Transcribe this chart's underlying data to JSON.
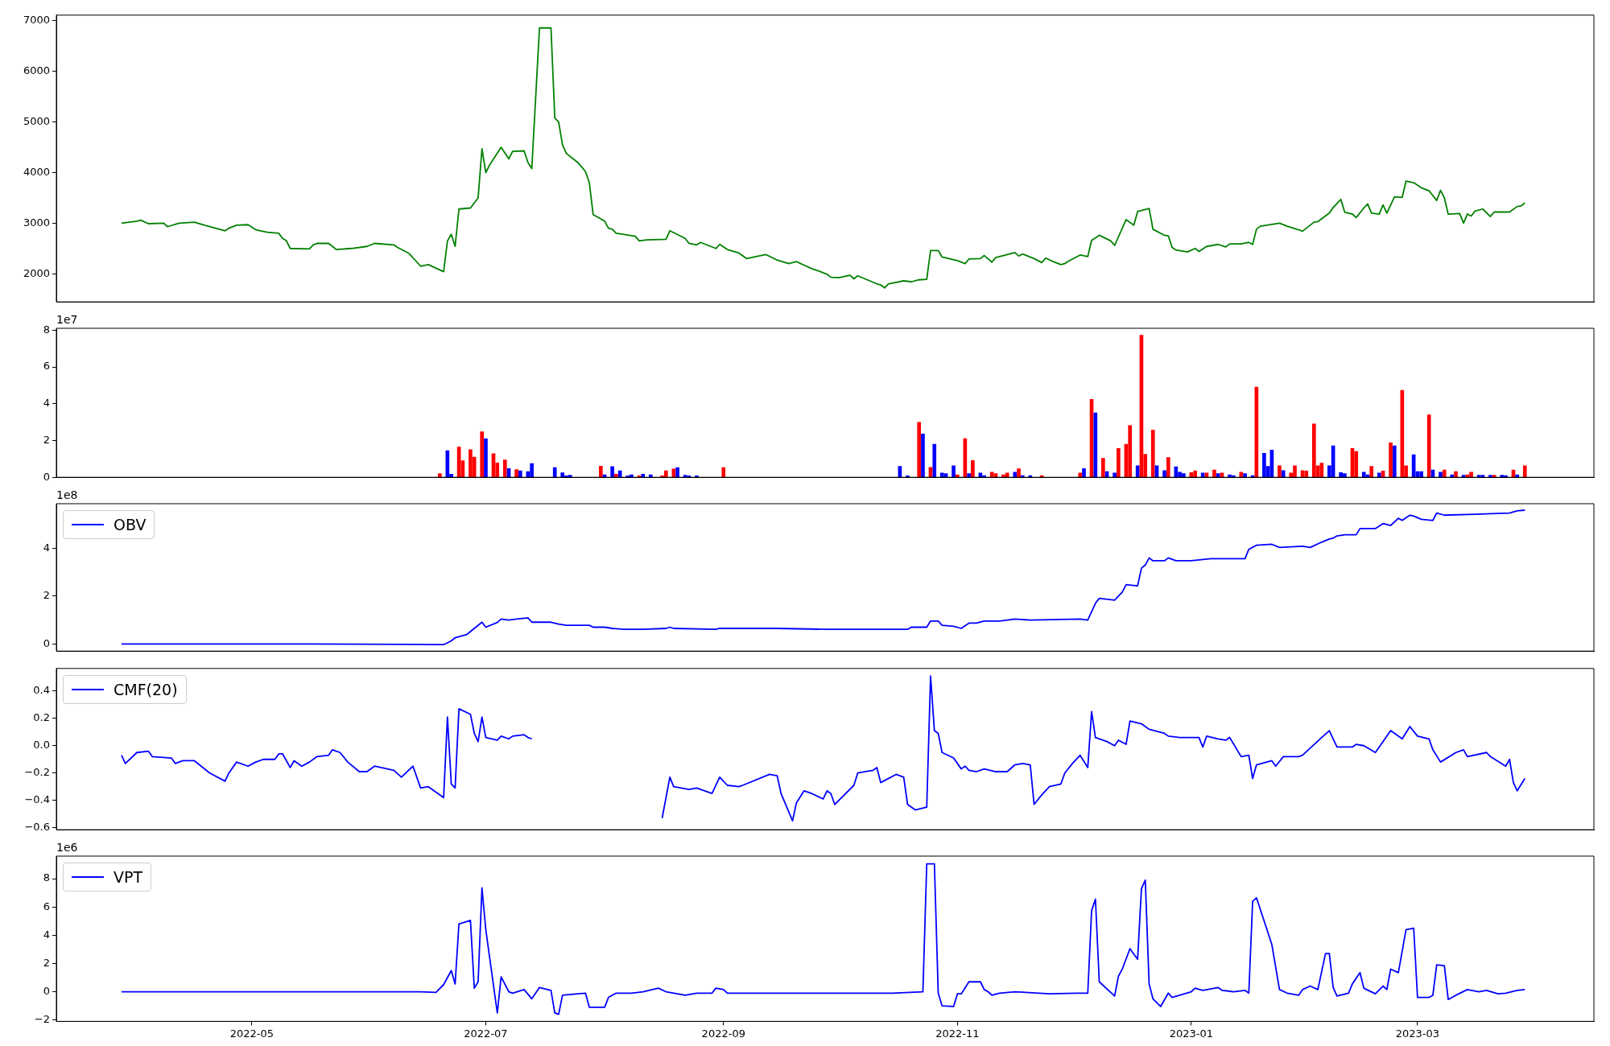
{
  "chart_data": [
    {
      "type": "line",
      "color": "#008000",
      "marker": "none",
      "grid": false,
      "tick_labels": "y",
      "xlim": [
        "2022-03-11",
        "2023-04-16"
      ],
      "xticks": [
        "2022-05",
        "2022-07",
        "2022-09",
        "2022-11",
        "2023-01",
        "2023-03"
      ],
      "ylim": [
        1443,
        7114
      ],
      "yticks": [
        2000,
        3000,
        4000,
        5000,
        6000,
        7000
      ],
      "x": [
        "2022-03-28",
        "2022-04-01",
        "2022-04-02",
        "2022-04-04",
        "2022-04-08",
        "2022-04-09",
        "2022-04-12",
        "2022-04-16",
        "2022-04-19",
        "2022-04-24",
        "2022-04-25",
        "2022-04-27",
        "2022-04-30",
        "2022-05-02",
        "2022-05-05",
        "2022-05-08",
        "2022-05-09",
        "2022-05-10",
        "2022-05-11",
        "2022-05-16",
        "2022-05-17",
        "2022-05-18",
        "2022-05-21",
        "2022-05-23",
        "2022-05-27",
        "2022-05-31",
        "2022-06-02",
        "2022-06-07",
        "2022-06-08",
        "2022-06-11",
        "2022-06-14",
        "2022-06-16",
        "2022-06-20",
        "2022-06-21",
        "2022-06-22",
        "2022-06-23",
        "2022-06-24",
        "2022-06-27",
        "2022-06-29",
        "2022-06-30",
        "2022-07-01",
        "2022-07-02",
        "2022-07-05",
        "2022-07-07",
        "2022-07-08",
        "2022-07-11",
        "2022-07-12",
        "2022-07-13",
        "2022-07-15",
        "2022-07-18",
        "2022-07-19",
        "2022-07-20",
        "2022-07-21",
        "2022-07-22",
        "2022-07-25",
        "2022-07-27",
        "2022-07-28",
        "2022-07-29",
        "2022-08-01",
        "2022-08-02",
        "2022-08-03",
        "2022-08-04",
        "2022-08-09",
        "2022-08-10",
        "2022-08-12",
        "2022-08-17",
        "2022-08-18",
        "2022-08-22",
        "2022-08-23",
        "2022-08-25",
        "2022-08-26",
        "2022-08-30",
        "2022-08-31",
        "2022-09-02",
        "2022-09-05",
        "2022-09-07",
        "2022-09-12",
        "2022-09-15",
        "2022-09-18",
        "2022-09-20",
        "2022-09-22",
        "2022-09-24",
        "2022-09-26",
        "2022-09-28",
        "2022-09-29",
        "2022-10-01",
        "2022-10-04",
        "2022-10-05",
        "2022-10-06",
        "2022-10-11",
        "2022-10-12",
        "2022-10-13",
        "2022-10-14",
        "2022-10-18",
        "2022-10-20",
        "2022-10-22",
        "2022-10-24",
        "2022-10-25",
        "2022-10-27",
        "2022-10-28",
        "2022-11-01",
        "2022-11-03",
        "2022-11-04",
        "2022-11-07",
        "2022-11-08",
        "2022-11-10",
        "2022-11-11",
        "2022-11-14",
        "2022-11-16",
        "2022-11-17",
        "2022-11-18",
        "2022-11-21",
        "2022-11-23",
        "2022-11-24",
        "2022-11-26",
        "2022-11-28",
        "2022-11-29",
        "2022-11-30",
        "2022-12-03",
        "2022-12-05",
        "2022-12-06",
        "2022-12-08",
        "2022-12-11",
        "2022-12-12",
        "2022-12-15",
        "2022-12-17",
        "2022-12-18",
        "2022-12-21",
        "2022-12-22",
        "2022-12-25",
        "2022-12-26",
        "2022-12-27",
        "2022-12-28",
        "2022-12-31",
        "2023-01-02",
        "2023-01-03",
        "2023-01-05",
        "2023-01-08",
        "2023-01-10",
        "2023-01-11",
        "2023-01-14",
        "2023-01-16",
        "2023-01-17",
        "2023-01-18",
        "2023-01-19",
        "2023-01-24",
        "2023-01-26",
        "2023-01-29",
        "2023-01-30",
        "2023-02-02",
        "2023-02-03",
        "2023-02-06",
        "2023-02-07",
        "2023-02-09",
        "2023-02-10",
        "2023-02-12",
        "2023-02-13",
        "2023-02-15",
        "2023-02-16",
        "2023-02-17",
        "2023-02-19",
        "2023-02-20",
        "2023-02-21",
        "2023-02-23",
        "2023-02-25",
        "2023-02-26",
        "2023-02-28",
        "2023-03-02",
        "2023-03-04",
        "2023-03-06",
        "2023-03-07",
        "2023-03-08",
        "2023-03-09",
        "2023-03-12",
        "2023-03-13",
        "2023-03-14",
        "2023-03-15",
        "2023-03-16",
        "2023-03-18",
        "2023-03-20",
        "2023-03-21",
        "2023-03-25",
        "2023-03-27",
        "2023-03-28",
        "2023-03-29"
      ],
      "values": [
        3000,
        3040,
        3060,
        2990,
        3000,
        2930,
        3000,
        3020,
        2950,
        2850,
        2900,
        2960,
        2970,
        2870,
        2820,
        2800,
        2700,
        2650,
        2500,
        2490,
        2570,
        2600,
        2600,
        2480,
        2500,
        2540,
        2600,
        2570,
        2520,
        2400,
        2150,
        2180,
        2040,
        2650,
        2780,
        2540,
        3280,
        3300,
        3500,
        4470,
        4000,
        4150,
        4500,
        4270,
        4420,
        4430,
        4200,
        4080,
        6860,
        6860,
        5080,
        5000,
        4550,
        4380,
        4200,
        4020,
        3800,
        3170,
        3040,
        2900,
        2880,
        2800,
        2740,
        2650,
        2670,
        2680,
        2850,
        2700,
        2600,
        2570,
        2620,
        2500,
        2580,
        2480,
        2410,
        2300,
        2380,
        2270,
        2200,
        2240,
        2170,
        2100,
        2050,
        1990,
        1930,
        1920,
        1970,
        1900,
        1960,
        1800,
        1780,
        1720,
        1800,
        1860,
        1840,
        1880,
        1890,
        2460,
        2460,
        2330,
        2260,
        2200,
        2290,
        2300,
        2360,
        2230,
        2320,
        2380,
        2420,
        2350,
        2390,
        2300,
        2220,
        2310,
        2240,
        2180,
        2200,
        2250,
        2370,
        2340,
        2660,
        2760,
        2650,
        2560,
        3070,
        2960,
        3230,
        3290,
        2880,
        2760,
        2750,
        2520,
        2470,
        2430,
        2500,
        2440,
        2540,
        2580,
        2530,
        2590,
        2590,
        2620,
        2580,
        2880,
        2940,
        3000,
        2940,
        2870,
        2840,
        3020,
        3030,
        3200,
        3310,
        3470,
        3220,
        3180,
        3110,
        3300,
        3380,
        3200,
        3180,
        3360,
        3200,
        3520,
        3510,
        3830,
        3800,
        3700,
        3640,
        3450,
        3650,
        3500,
        3180,
        3190,
        3000,
        3180,
        3140,
        3240,
        3280,
        3130,
        3220,
        3220,
        3330,
        3340,
        3400
      ]
    },
    {
      "type": "bar",
      "grid": false,
      "tick_labels": "y",
      "xlim": [
        "2022-03-11",
        "2023-04-16"
      ],
      "xticks": [
        "2022-05",
        "2022-07",
        "2022-09",
        "2022-11",
        "2023-01",
        "2023-03"
      ],
      "ylim": [
        0,
        8.1
      ],
      "yticks": [
        0,
        2,
        4,
        6,
        8
      ],
      "annotations": [
        "1e7"
      ],
      "x": [
        "2022-06-19",
        "2022-06-21",
        "2022-06-22",
        "2022-06-24",
        "2022-06-25",
        "2022-06-27",
        "2022-06-28",
        "2022-06-30",
        "2022-07-01",
        "2022-07-03",
        "2022-07-04",
        "2022-07-06",
        "2022-07-07",
        "2022-07-09",
        "2022-07-10",
        "2022-07-12",
        "2022-07-13",
        "2022-07-19",
        "2022-07-21",
        "2022-07-22",
        "2022-07-23",
        "2022-07-31",
        "2022-08-01",
        "2022-08-03",
        "2022-08-04",
        "2022-08-05",
        "2022-08-07",
        "2022-08-08",
        "2022-08-10",
        "2022-08-11",
        "2022-08-13",
        "2022-08-16",
        "2022-08-17",
        "2022-08-19",
        "2022-08-20",
        "2022-08-22",
        "2022-08-23",
        "2022-08-25",
        "2022-09-01",
        "2022-10-17",
        "2022-10-19",
        "2022-10-22",
        "2022-10-23",
        "2022-10-25",
        "2022-10-26",
        "2022-10-28",
        "2022-10-29",
        "2022-10-31",
        "2022-11-01",
        "2022-11-03",
        "2022-11-04",
        "2022-11-05",
        "2022-11-07",
        "2022-11-08",
        "2022-11-10",
        "2022-11-11",
        "2022-11-13",
        "2022-11-14",
        "2022-11-16",
        "2022-11-17",
        "2022-11-18",
        "2022-11-20",
        "2022-11-23",
        "2022-12-03",
        "2022-12-04",
        "2022-12-06",
        "2022-12-07",
        "2022-12-09",
        "2022-12-10",
        "2022-12-12",
        "2022-12-13",
        "2022-12-15",
        "2022-12-16",
        "2022-12-18",
        "2022-12-19",
        "2022-12-20",
        "2022-12-22",
        "2022-12-23",
        "2022-12-25",
        "2022-12-26",
        "2022-12-28",
        "2022-12-29",
        "2022-12-30",
        "2023-01-01",
        "2023-01-02",
        "2023-01-04",
        "2023-01-05",
        "2023-01-07",
        "2023-01-08",
        "2023-01-09",
        "2023-01-11",
        "2023-01-12",
        "2023-01-14",
        "2023-01-15",
        "2023-01-17",
        "2023-01-18",
        "2023-01-20",
        "2023-01-21",
        "2023-01-22",
        "2023-01-24",
        "2023-01-25",
        "2023-01-27",
        "2023-01-28",
        "2023-01-30",
        "2023-01-31",
        "2023-02-02",
        "2023-02-03",
        "2023-02-04",
        "2023-02-06",
        "2023-02-07",
        "2023-02-09",
        "2023-02-10",
        "2023-02-12",
        "2023-02-13",
        "2023-02-15",
        "2023-02-16",
        "2023-02-17",
        "2023-02-19",
        "2023-02-20",
        "2023-02-22",
        "2023-02-23",
        "2023-02-25",
        "2023-02-26",
        "2023-02-28",
        "2023-03-01",
        "2023-03-02",
        "2023-03-04",
        "2023-03-05",
        "2023-03-07",
        "2023-03-08",
        "2023-03-10",
        "2023-03-11",
        "2023-03-13",
        "2023-03-14",
        "2023-03-15",
        "2023-03-17",
        "2023-03-18",
        "2023-03-20",
        "2023-03-21",
        "2023-03-23",
        "2023-03-24",
        "2023-03-26",
        "2023-03-27",
        "2023-03-29"
      ],
      "values": [
        0.2,
        1.45,
        0.17,
        1.64,
        0.9,
        1.5,
        1.1,
        2.48,
        2.09,
        1.28,
        0.78,
        0.95,
        0.47,
        0.42,
        0.36,
        0.31,
        0.75,
        0.53,
        0.25,
        0.08,
        0.11,
        0.61,
        0.14,
        0.58,
        0.17,
        0.36,
        0.08,
        0.14,
        0.08,
        0.17,
        0.14,
        0.08,
        0.36,
        0.45,
        0.53,
        0.11,
        0.08,
        0.08,
        0.53,
        0.6,
        0.08,
        2.99,
        2.36,
        0.54,
        1.8,
        0.23,
        0.2,
        0.63,
        0.14,
        2.1,
        0.2,
        0.91,
        0.23,
        0.09,
        0.28,
        0.2,
        0.14,
        0.23,
        0.28,
        0.46,
        0.09,
        0.09,
        0.09,
        0.23,
        0.48,
        4.24,
        3.5,
        1.03,
        0.31,
        0.23,
        1.57,
        1.8,
        2.82,
        0.63,
        7.72,
        1.25,
        2.56,
        0.63,
        0.37,
        1.08,
        0.57,
        0.28,
        0.2,
        0.26,
        0.34,
        0.23,
        0.23,
        0.4,
        0.2,
        0.23,
        0.14,
        0.09,
        0.28,
        0.2,
        0.09,
        4.9,
        1.31,
        0.6,
        1.48,
        0.63,
        0.37,
        0.23,
        0.63,
        0.37,
        0.34,
        2.9,
        0.63,
        0.77,
        0.63,
        1.71,
        0.26,
        0.2,
        1.57,
        1.4,
        0.28,
        0.14,
        0.6,
        0.23,
        0.34,
        1.88,
        1.71,
        4.73,
        0.63,
        1.23,
        0.31,
        0.31,
        3.39,
        0.4,
        0.28,
        0.4,
        0.14,
        0.31,
        0.11,
        0.14,
        0.28,
        0.11,
        0.11,
        0.11,
        0.11,
        0.11,
        0.09,
        0.4,
        0.14,
        0.63
      ],
      "colors": [
        "#ff0000",
        "#0000ff",
        "#0000ff",
        "#ff0000",
        "#ff0000",
        "#ff0000",
        "#ff0000",
        "#ff0000",
        "#0000ff",
        "#ff0000",
        "#ff0000",
        "#ff0000",
        "#0000ff",
        "#ff0000",
        "#0000ff",
        "#0000ff",
        "#0000ff",
        "#0000ff",
        "#0000ff",
        "#0000ff",
        "#0000ff",
        "#ff0000",
        "#0000ff",
        "#0000ff",
        "#ff0000",
        "#0000ff",
        "#0000ff",
        "#0000ff",
        "#ff0000",
        "#0000ff",
        "#0000ff",
        "#ff0000",
        "#ff0000",
        "#ff0000",
        "#0000ff",
        "#0000ff",
        "#0000ff",
        "#0000ff",
        "#ff0000",
        "#0000ff",
        "#0000ff",
        "#ff0000",
        "#0000ff",
        "#ff0000",
        "#0000ff",
        "#0000ff",
        "#0000ff",
        "#0000ff",
        "#ff0000",
        "#ff0000",
        "#0000ff",
        "#ff0000",
        "#0000ff",
        "#0000ff",
        "#ff0000",
        "#ff0000",
        "#ff0000",
        "#ff0000",
        "#0000ff",
        "#ff0000",
        "#0000ff",
        "#0000ff",
        "#ff0000",
        "#ff0000",
        "#0000ff",
        "#ff0000",
        "#0000ff",
        "#ff0000",
        "#0000ff",
        "#0000ff",
        "#ff0000",
        "#ff0000",
        "#ff0000",
        "#0000ff",
        "#ff0000",
        "#ff0000",
        "#ff0000",
        "#0000ff",
        "#0000ff",
        "#ff0000",
        "#0000ff",
        "#0000ff",
        "#0000ff",
        "#ff0000",
        "#ff0000",
        "#0000ff",
        "#ff0000",
        "#ff0000",
        "#0000ff",
        "#ff0000",
        "#0000ff",
        "#0000ff",
        "#ff0000",
        "#0000ff",
        "#0000ff",
        "#ff0000",
        "#0000ff",
        "#0000ff",
        "#0000ff",
        "#ff0000",
        "#0000ff",
        "#ff0000",
        "#ff0000",
        "#ff0000",
        "#ff0000",
        "#ff0000",
        "#ff0000",
        "#ff0000",
        "#0000ff",
        "#0000ff",
        "#0000ff",
        "#0000ff",
        "#ff0000",
        "#ff0000",
        "#0000ff",
        "#0000ff",
        "#ff0000",
        "#0000ff",
        "#ff0000",
        "#ff0000",
        "#0000ff",
        "#ff0000",
        "#ff0000",
        "#0000ff",
        "#0000ff",
        "#0000ff",
        "#ff0000",
        "#0000ff",
        "#0000ff",
        "#ff0000",
        "#0000ff",
        "#ff0000",
        "#0000ff",
        "#ff0000",
        "#ff0000",
        "#0000ff",
        "#0000ff",
        "#0000ff",
        "#ff0000",
        "#0000ff",
        "#0000ff",
        "#ff0000",
        "#0000ff",
        "#ff0000"
      ]
    },
    {
      "type": "line",
      "marker": "none",
      "grid": false,
      "tick_labels": "y",
      "legend": "top left",
      "xlim": [
        "2022-03-11",
        "2023-04-16"
      ],
      "xticks": [
        "2022-05",
        "2022-07",
        "2022-09",
        "2022-11",
        "2023-01",
        "2023-03"
      ],
      "ylim": [
        -0.3,
        5.87
      ],
      "yticks": [
        0,
        2,
        4
      ],
      "annotations": [
        "1e8"
      ],
      "x": [
        "2022-03-28",
        "2022-05-16",
        "2022-06-20",
        "2022-06-22",
        "2022-06-23",
        "2022-06-26",
        "2022-06-28",
        "2022-06-30",
        "2022-07-01",
        "2022-07-04",
        "2022-07-05",
        "2022-07-07",
        "2022-07-09",
        "2022-07-12",
        "2022-07-13",
        "2022-07-18",
        "2022-07-20",
        "2022-07-22",
        "2022-07-28",
        "2022-07-29",
        "2022-08-01",
        "2022-08-03",
        "2022-08-06",
        "2022-08-09",
        "2022-08-11",
        "2022-08-17",
        "2022-08-18",
        "2022-08-19",
        "2022-08-30",
        "2022-08-31",
        "2022-09-15",
        "2022-09-28",
        "2022-10-09",
        "2022-10-19",
        "2022-10-20",
        "2022-10-24",
        "2022-10-25",
        "2022-10-27",
        "2022-10-28",
        "2022-10-31",
        "2022-11-02",
        "2022-11-04",
        "2022-11-06",
        "2022-11-08",
        "2022-11-12",
        "2022-11-16",
        "2022-11-20",
        "2022-12-03",
        "2022-12-05",
        "2022-12-07",
        "2022-12-08",
        "2022-12-12",
        "2022-12-14",
        "2022-12-15",
        "2022-12-18",
        "2022-12-19",
        "2022-12-20",
        "2022-12-21",
        "2022-12-22",
        "2022-12-25",
        "2022-12-26",
        "2022-12-28",
        "2023-01-01",
        "2023-01-06",
        "2023-01-12",
        "2023-01-15",
        "2023-01-16",
        "2023-01-18",
        "2023-01-22",
        "2023-01-24",
        "2023-01-30",
        "2023-02-01",
        "2023-02-04",
        "2023-02-06",
        "2023-02-07",
        "2023-02-08",
        "2023-02-10",
        "2023-02-13",
        "2023-02-14",
        "2023-02-18",
        "2023-02-20",
        "2023-02-22",
        "2023-02-24",
        "2023-02-25",
        "2023-02-27",
        "2023-02-28",
        "2023-03-02",
        "2023-03-05",
        "2023-03-06",
        "2023-03-08",
        "2023-03-16",
        "2023-03-25",
        "2023-03-27",
        "2023-03-29"
      ],
      "series": [
        {
          "name": "OBV",
          "color": "#0000ff",
          "values": [
            0,
            0,
            -0.03,
            0.13,
            0.26,
            0.39,
            0.65,
            0.91,
            0.7,
            0.9,
            1.04,
            1.0,
            1.04,
            1.09,
            0.91,
            0.91,
            0.83,
            0.78,
            0.78,
            0.7,
            0.7,
            0.65,
            0.61,
            0.61,
            0.61,
            0.65,
            0.7,
            0.65,
            0.61,
            0.65,
            0.65,
            0.61,
            0.61,
            0.61,
            0.7,
            0.7,
            0.96,
            0.96,
            0.78,
            0.74,
            0.65,
            0.87,
            0.87,
            0.96,
            0.96,
            1.04,
            1.0,
            1.04,
            1.0,
            1.7,
            1.91,
            1.83,
            2.17,
            2.48,
            2.43,
            3.17,
            3.3,
            3.6,
            3.48,
            3.48,
            3.6,
            3.48,
            3.48,
            3.57,
            3.57,
            3.57,
            3.96,
            4.13,
            4.17,
            4.04,
            4.09,
            4.04,
            4.26,
            4.39,
            4.43,
            4.52,
            4.57,
            4.57,
            4.83,
            4.83,
            5.04,
            4.96,
            5.26,
            5.17,
            5.39,
            5.35,
            5.22,
            5.17,
            5.48,
            5.39,
            5.43,
            5.48,
            5.57,
            5.6
          ]
        }
      ]
    },
    {
      "type": "line",
      "marker": "none",
      "grid": false,
      "tick_labels": "y",
      "legend": "top left",
      "xlim": [
        "2022-03-11",
        "2023-04-16"
      ],
      "xticks": [
        "2022-05",
        "2022-07",
        "2022-09",
        "2022-11",
        "2023-01",
        "2023-03"
      ],
      "ylim": [
        -0.615,
        0.565
      ],
      "yticks": [
        {
          "value": -0.6,
          "label": "−0.6"
        },
        {
          "value": -0.4,
          "label": "−0.4"
        },
        {
          "value": -0.2,
          "label": "−0.2"
        },
        {
          "value": 0,
          "label": "0.0"
        },
        0.2,
        0.4
      ],
      "x": [
        "2022-03-28",
        "2022-03-29",
        "2022-04-01",
        "2022-04-04",
        "2022-04-05",
        "2022-04-10",
        "2022-04-11",
        "2022-04-13",
        "2022-04-16",
        "2022-04-20",
        "2022-04-24",
        "2022-04-25",
        "2022-04-27",
        "2022-04-30",
        "2022-05-02",
        "2022-05-04",
        "2022-05-07",
        "2022-05-08",
        "2022-05-09",
        "2022-05-11",
        "2022-05-12",
        "2022-05-14",
        "2022-05-16",
        "2022-05-18",
        "2022-05-21",
        "2022-05-22",
        "2022-05-24",
        "2022-05-26",
        "2022-05-29",
        "2022-05-31",
        "2022-06-02",
        "2022-06-07",
        "2022-06-09",
        "2022-06-12",
        "2022-06-14",
        "2022-06-16",
        "2022-06-20",
        "2022-06-21",
        "2022-06-22",
        "2022-06-23",
        "2022-06-24",
        "2022-06-27",
        "2022-06-28",
        "2022-06-29",
        "2022-06-30",
        "2022-07-01",
        "2022-07-04",
        "2022-07-05",
        "2022-07-07",
        "2022-07-08",
        "2022-07-11",
        "2022-07-12",
        "2022-07-13",
        "2022-07-27",
        "2022-08-16",
        "2022-08-18",
        "2022-08-19",
        "2022-08-23",
        "2022-08-25",
        "2022-08-29",
        "2022-08-31",
        "2022-09-02",
        "2022-09-05",
        "2022-09-06",
        "2022-09-13",
        "2022-09-15",
        "2022-09-16",
        "2022-09-19",
        "2022-09-20",
        "2022-09-22",
        "2022-09-24",
        "2022-09-27",
        "2022-09-28",
        "2022-09-29",
        "2022-09-30",
        "2022-10-05",
        "2022-10-06",
        "2022-10-10",
        "2022-10-11",
        "2022-10-12",
        "2022-10-16",
        "2022-10-18",
        "2022-10-19",
        "2022-10-21",
        "2022-10-24",
        "2022-10-25",
        "2022-10-26",
        "2022-10-27",
        "2022-10-28",
        "2022-10-31",
        "2022-11-02",
        "2022-11-03",
        "2022-11-04",
        "2022-11-06",
        "2022-11-08",
        "2022-11-11",
        "2022-11-14",
        "2022-11-16",
        "2022-11-18",
        "2022-11-20",
        "2022-11-21",
        "2022-11-23",
        "2022-11-25",
        "2022-11-28",
        "2022-11-29",
        "2022-12-01",
        "2022-12-03",
        "2022-12-05",
        "2022-12-06",
        "2022-12-07",
        "2022-12-10",
        "2022-12-12",
        "2022-12-13",
        "2022-12-15",
        "2022-12-16",
        "2022-12-19",
        "2022-12-20",
        "2022-12-21",
        "2022-12-25",
        "2022-12-26",
        "2022-12-29",
        "2023-01-03",
        "2023-01-04",
        "2023-01-05",
        "2023-01-08",
        "2023-01-10",
        "2023-01-11",
        "2023-01-14",
        "2023-01-16",
        "2023-01-17",
        "2023-01-18",
        "2023-01-22",
        "2023-01-23",
        "2023-01-25",
        "2023-01-29",
        "2023-01-30",
        "2023-02-04",
        "2023-02-06",
        "2023-02-07",
        "2023-02-08",
        "2023-02-12",
        "2023-02-13",
        "2023-02-15",
        "2023-02-18",
        "2023-02-19",
        "2023-02-22",
        "2023-02-25",
        "2023-02-27",
        "2023-03-01",
        "2023-03-04",
        "2023-03-05",
        "2023-03-07",
        "2023-03-11",
        "2023-03-13",
        "2023-03-14",
        "2023-03-19",
        "2023-03-20",
        "2023-03-24",
        "2023-03-25",
        "2023-03-26",
        "2023-03-27",
        "2023-03-29"
      ],
      "series": [
        {
          "name": "CMF(20)",
          "color": "#0000ff",
          "values": [
            -0.07,
            -0.13,
            -0.05,
            -0.04,
            -0.08,
            -0.09,
            -0.13,
            -0.11,
            -0.11,
            -0.2,
            -0.26,
            -0.2,
            -0.12,
            -0.15,
            -0.12,
            -0.1,
            -0.1,
            -0.06,
            -0.06,
            -0.16,
            -0.11,
            -0.15,
            -0.12,
            -0.08,
            -0.07,
            -0.03,
            -0.05,
            -0.12,
            -0.19,
            -0.19,
            -0.15,
            -0.18,
            -0.23,
            -0.15,
            -0.31,
            -0.3,
            -0.38,
            0.21,
            -0.28,
            -0.31,
            0.27,
            0.23,
            0.09,
            0.03,
            0.21,
            0.06,
            0.04,
            0.07,
            0.05,
            0.07,
            0.08,
            0.06,
            0.05,
            null,
            -0.53,
            -0.23,
            -0.3,
            -0.32,
            -0.31,
            -0.35,
            -0.23,
            -0.29,
            -0.3,
            -0.29,
            -0.21,
            -0.22,
            -0.35,
            -0.55,
            -0.42,
            -0.33,
            -0.35,
            -0.39,
            -0.33,
            -0.35,
            -0.43,
            -0.29,
            -0.2,
            -0.18,
            -0.16,
            -0.27,
            -0.21,
            -0.23,
            -0.43,
            -0.47,
            -0.45,
            0.51,
            0.11,
            0.09,
            -0.05,
            -0.09,
            -0.17,
            -0.15,
            -0.18,
            -0.19,
            -0.17,
            -0.19,
            -0.19,
            -0.14,
            -0.13,
            -0.14,
            -0.43,
            -0.36,
            -0.3,
            -0.28,
            -0.2,
            -0.13,
            -0.07,
            -0.16,
            0.25,
            0.06,
            0.03,
            0,
            0.04,
            0.01,
            0.18,
            0.16,
            0.14,
            0.12,
            0.09,
            0.07,
            0.06,
            0.06,
            -0.01,
            0.07,
            0.05,
            0.04,
            0.06,
            -0.08,
            -0.07,
            -0.24,
            -0.14,
            -0.11,
            -0.15,
            -0.08,
            -0.08,
            -0.07,
            0.06,
            0.11,
            0.05,
            -0.01,
            -0.01,
            0.01,
            0,
            -0.05,
            -0.01,
            0.11,
            0.05,
            0.14,
            0.07,
            0.05,
            -0.03,
            -0.12,
            -0.05,
            -0.03,
            -0.08,
            -0.05,
            -0.08,
            -0.15,
            -0.1,
            -0.27,
            -0.33,
            -0.24
          ]
        }
      ]
    },
    {
      "type": "line",
      "marker": "none",
      "grid": false,
      "legend": "top left",
      "xlim": [
        "2022-03-11",
        "2023-04-16"
      ],
      "xticks": [
        "2022-05",
        "2022-07",
        "2022-09",
        "2022-11",
        "2023-01",
        "2023-03"
      ],
      "ylim": [
        -2.1,
        9.6
      ],
      "yticks": [
        {
          "value": -2,
          "label": "−2"
        },
        0,
        2,
        4,
        6,
        8
      ],
      "annotations": [
        "1e6"
      ],
      "x": [
        "2022-03-28",
        "2022-06-09",
        "2022-06-14",
        "2022-06-18",
        "2022-06-20",
        "2022-06-22",
        "2022-06-23",
        "2022-06-24",
        "2022-06-27",
        "2022-06-28",
        "2022-06-29",
        "2022-06-30",
        "2022-07-01",
        "2022-07-04",
        "2022-07-05",
        "2022-07-07",
        "2022-07-08",
        "2022-07-11",
        "2022-07-13",
        "2022-07-15",
        "2022-07-18",
        "2022-07-19",
        "2022-07-20",
        "2022-07-21",
        "2022-07-25",
        "2022-07-27",
        "2022-07-28",
        "2022-08-01",
        "2022-08-02",
        "2022-08-04",
        "2022-08-08",
        "2022-08-11",
        "2022-08-15",
        "2022-08-17",
        "2022-08-22",
        "2022-08-25",
        "2022-08-29",
        "2022-08-30",
        "2022-09-01",
        "2022-09-02",
        "2022-09-14",
        "2022-09-24",
        "2022-10-04",
        "2022-10-15",
        "2022-10-23",
        "2022-10-24",
        "2022-10-26",
        "2022-10-27",
        "2022-10-28",
        "2022-10-31",
        "2022-11-01",
        "2022-11-02",
        "2022-11-04",
        "2022-11-07",
        "2022-11-08",
        "2022-11-09",
        "2022-11-10",
        "2022-11-12",
        "2022-11-16",
        "2022-11-25",
        "2022-12-02",
        "2022-12-05",
        "2022-12-06",
        "2022-12-07",
        "2022-12-08",
        "2022-12-12",
        "2022-12-13",
        "2022-12-14",
        "2022-12-16",
        "2022-12-18",
        "2022-12-19",
        "2022-12-20",
        "2022-12-21",
        "2022-12-22",
        "2022-12-24",
        "2022-12-26",
        "2022-12-27",
        "2023-01-01",
        "2023-01-02",
        "2023-01-04",
        "2023-01-08",
        "2023-01-09",
        "2023-01-12",
        "2023-01-15",
        "2023-01-16",
        "2023-01-17",
        "2023-01-18",
        "2023-01-22",
        "2023-01-24",
        "2023-01-26",
        "2023-01-29",
        "2023-01-30",
        "2023-02-01",
        "2023-02-03",
        "2023-02-05",
        "2023-02-06",
        "2023-02-07",
        "2023-02-08",
        "2023-02-11",
        "2023-02-12",
        "2023-02-14",
        "2023-02-15",
        "2023-02-18",
        "2023-02-20",
        "2023-02-21",
        "2023-02-22",
        "2023-02-24",
        "2023-02-26",
        "2023-02-28",
        "2023-03-01",
        "2023-03-04",
        "2023-03-05",
        "2023-03-06",
        "2023-03-08",
        "2023-03-09",
        "2023-03-11",
        "2023-03-14",
        "2023-03-17",
        "2023-03-19",
        "2023-03-22",
        "2023-03-24",
        "2023-03-27",
        "2023-03-29"
      ],
      "series": [
        {
          "name": "VPT",
          "color": "#0000ff",
          "values": [
            0,
            0,
            0,
            -0.05,
            0.5,
            1.5,
            0.55,
            4.8,
            5.05,
            0.25,
            0.7,
            7.35,
            4.4,
            -1.5,
            1.05,
            0,
            -0.1,
            0.15,
            -0.5,
            0.3,
            0.1,
            -1.5,
            -1.6,
            -0.25,
            -0.15,
            -0.1,
            -1.1,
            -1.1,
            -0.4,
            -0.1,
            -0.1,
            0,
            0.25,
            0,
            -0.25,
            -0.1,
            -0.1,
            0.25,
            0.15,
            -0.1,
            -0.1,
            -0.1,
            -0.1,
            -0.1,
            0,
            9.05,
            9.05,
            -0.1,
            -1.0,
            -1.05,
            -0.15,
            -0.15,
            0.7,
            0.7,
            0.15,
            0,
            -0.25,
            -0.1,
            0,
            -0.15,
            -0.1,
            -0.1,
            5.75,
            6.55,
            0.7,
            -0.3,
            1.1,
            1.6,
            3.05,
            2.3,
            7.3,
            7.9,
            0.55,
            -0.5,
            -1.05,
            -0.1,
            -0.4,
            0,
            0.25,
            0.1,
            0.3,
            0.1,
            0,
            0.1,
            -0.1,
            6.4,
            6.65,
            3.35,
            0.15,
            -0.1,
            -0.25,
            0.15,
            0.4,
            0.15,
            2.7,
            2.7,
            0.3,
            -0.3,
            -0.1,
            0.55,
            1.35,
            0.25,
            -0.15,
            0.4,
            0.15,
            1.6,
            1.35,
            4.4,
            4.5,
            -0.4,
            -0.4,
            -0.25,
            1.9,
            1.85,
            -0.55,
            -0.25,
            0.15,
            0,
            0.1,
            -0.15,
            -0.1,
            0.1,
            0.15
          ]
        }
      ]
    }
  ]
}
